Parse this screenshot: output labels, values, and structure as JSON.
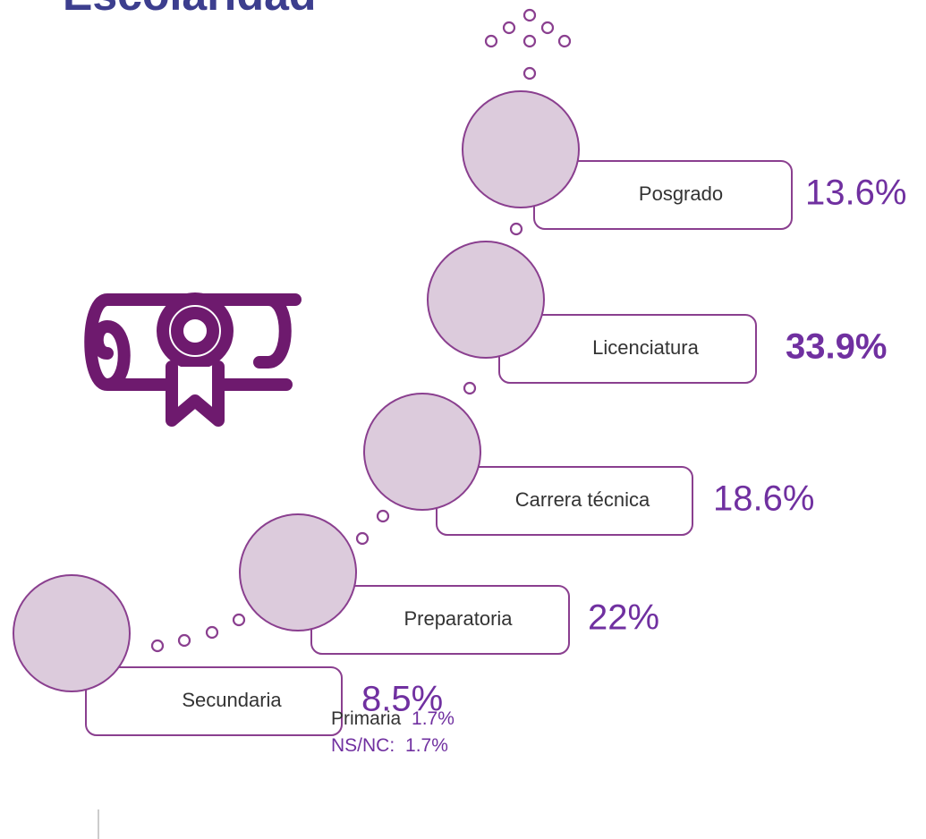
{
  "header": {
    "title": "Escolaridad"
  },
  "levels": [
    {
      "label": "Posgrado",
      "percent": "13.6%"
    },
    {
      "label": "Licenciatura",
      "percent": "33.9%"
    },
    {
      "label": "Carrera técnica",
      "percent": "18.6%"
    },
    {
      "label": "Preparatoria",
      "percent": "22%"
    },
    {
      "label": "Secundaria",
      "percent": "8.5%"
    }
  ],
  "footer": [
    {
      "label": "Primaria",
      "percent": "1.7%"
    },
    {
      "label": "NS/NC:",
      "percent": "1.7%"
    }
  ]
}
